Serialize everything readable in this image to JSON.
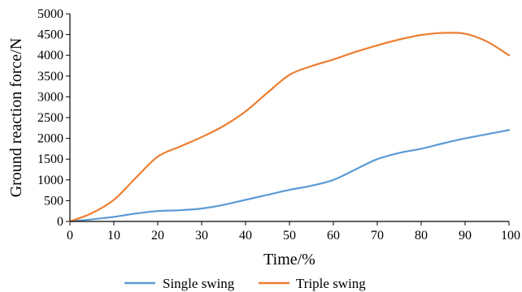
{
  "chart_data": {
    "type": "line",
    "xlabel": "Time/%",
    "ylabel": "Ground reaction force/N",
    "xlim": [
      0,
      100
    ],
    "ylim": [
      0,
      5000
    ],
    "x_ticks": [
      0,
      10,
      20,
      30,
      40,
      50,
      60,
      70,
      80,
      90,
      100
    ],
    "y_ticks": [
      0,
      500,
      1000,
      1500,
      2000,
      2500,
      3000,
      3500,
      4000,
      4500,
      5000
    ],
    "grid": false,
    "legend_position": "bottom",
    "series": [
      {
        "name": "Single swing",
        "color": "#5b9bd5",
        "x": [
          0,
          5,
          10,
          15,
          20,
          25,
          30,
          35,
          40,
          45,
          50,
          55,
          60,
          65,
          70,
          75,
          80,
          85,
          90,
          95,
          100
        ],
        "y": [
          0,
          50,
          110,
          190,
          250,
          270,
          310,
          400,
          520,
          640,
          760,
          860,
          1000,
          1250,
          1500,
          1650,
          1750,
          1880,
          2000,
          2100,
          2200
        ]
      },
      {
        "name": "Triple swing",
        "color": "#ed7d31",
        "x": [
          0,
          5,
          10,
          15,
          20,
          25,
          30,
          35,
          40,
          45,
          50,
          55,
          60,
          65,
          70,
          75,
          80,
          85,
          90,
          95,
          100
        ],
        "y": [
          0,
          200,
          520,
          1050,
          1560,
          1800,
          2030,
          2300,
          2650,
          3100,
          3530,
          3740,
          3900,
          4080,
          4240,
          4380,
          4490,
          4540,
          4520,
          4330,
          4000
        ]
      }
    ]
  }
}
